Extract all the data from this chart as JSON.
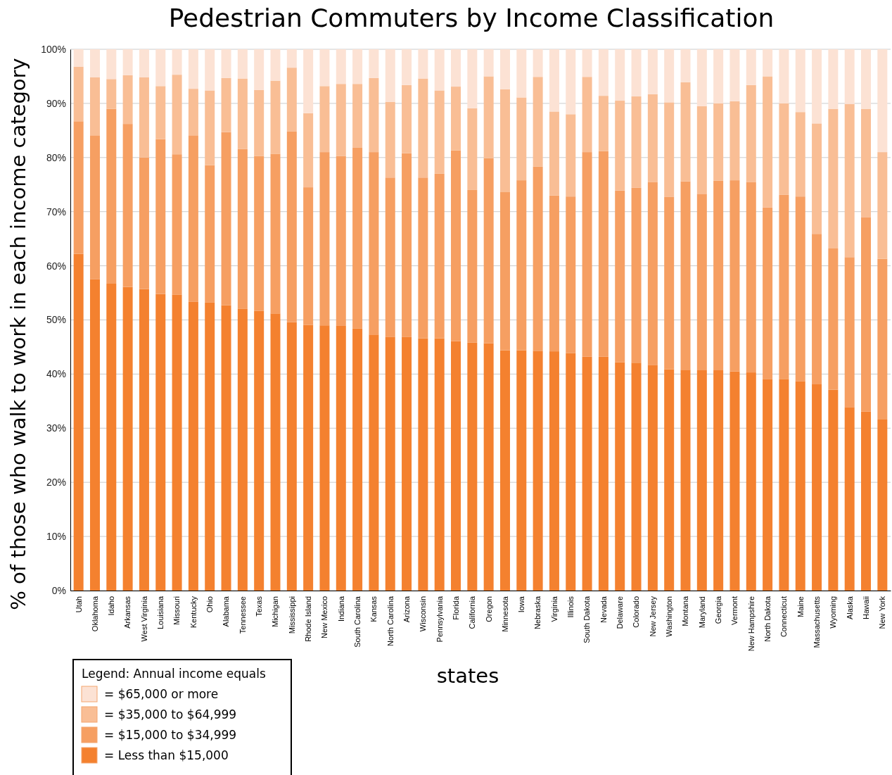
{
  "chart_data": {
    "type": "bar",
    "stacked": true,
    "title": "Pedestrian Commuters by Income Classification",
    "xlabel": "states",
    "ylabel": "% of those who walk to work in each income category",
    "legend_title": "Legend: Annual income equals",
    "legend": "bottom left",
    "grid": "y",
    "categories": [
      "Utah",
      "Oklahoma",
      "Idaho",
      "Arkansas",
      "West Virginia",
      "Louisiana",
      "Missouri",
      "Kentucky",
      "Ohio",
      "Alabama",
      "Tennessee",
      "Texas",
      "Michigan",
      "Mississippi",
      "Rhode Island",
      "New Mexico",
      "Indiana",
      "South Carolina",
      "Kansas",
      "North Carolina",
      "Arizona",
      "Wisconsin",
      "Pennsylvania",
      "Florida",
      "California",
      "Oregon",
      "Minnesota",
      "Iowa",
      "Nebraska",
      "Virginia",
      "Illinois",
      "South Dakota",
      "Nevada",
      "Delaware",
      "Colorado",
      "New Jersey",
      "Washington",
      "Montana",
      "Maryland",
      "Georgia",
      "Vermont",
      "New Hampshire",
      "North Dakota",
      "Connecticut",
      "Maine",
      "Massachusetts",
      "Wyoming",
      "Alaska",
      "Hawaii",
      "New York"
    ],
    "ylim": [
      0,
      100
    ],
    "yticks": [
      {
        "value": 0,
        "label": "0%"
      },
      {
        "value": 10,
        "label": "10%"
      },
      {
        "value": 20,
        "label": "20%"
      },
      {
        "value": 30,
        "label": "30%"
      },
      {
        "value": 40,
        "label": "40%"
      },
      {
        "value": 50,
        "label": "50%"
      },
      {
        "value": 60,
        "label": "60%"
      },
      {
        "value": 70,
        "label": "70%"
      },
      {
        "value": 80,
        "label": "80%"
      },
      {
        "value": 90,
        "label": "90%"
      },
      {
        "value": 100,
        "label": "100%"
      }
    ],
    "series": [
      {
        "name": "= Less than $15,000",
        "color": "#f4812f",
        "values": [
          62.2,
          57.5,
          56.7,
          56.1,
          55.7,
          54.8,
          54.7,
          53.4,
          53.2,
          52.7,
          52.1,
          51.7,
          51.2,
          49.6,
          49.1,
          49.0,
          48.9,
          48.4,
          47.3,
          46.9,
          46.9,
          46.6,
          46.6,
          46.1,
          45.8,
          45.7,
          44.4,
          44.4,
          44.3,
          44.2,
          43.9,
          43.2,
          43.2,
          42.2,
          42.1,
          41.7,
          40.9,
          40.8,
          40.7,
          40.7,
          40.5,
          40.3,
          39.1,
          39.1,
          38.7,
          38.1,
          37.1,
          33.9,
          33.1,
          31.6
        ]
      },
      {
        "name": "= $15,000 to $34,999",
        "color": "#f69f62",
        "values": [
          24.5,
          26.6,
          32.3,
          30.1,
          24.3,
          28.6,
          25.9,
          30.7,
          25.4,
          32.0,
          29.5,
          28.6,
          29.5,
          35.2,
          25.4,
          32.0,
          31.4,
          33.4,
          33.7,
          29.4,
          33.9,
          29.7,
          30.4,
          35.2,
          28.2,
          34.2,
          29.2,
          31.4,
          34.0,
          28.8,
          28.9,
          37.8,
          38.0,
          31.7,
          32.3,
          33.8,
          31.8,
          34.8,
          32.6,
          35.0,
          35.3,
          35.2,
          31.7,
          34.0,
          34.1,
          27.8,
          26.1,
          27.7,
          35.9,
          29.7
        ]
      },
      {
        "name": "= $35,000 to $64,999",
        "color": "#f9be95",
        "values": [
          10.1,
          10.7,
          5.5,
          9.0,
          14.8,
          9.8,
          14.7,
          8.6,
          13.8,
          10.0,
          13.0,
          12.2,
          13.5,
          11.8,
          13.7,
          12.2,
          13.3,
          11.8,
          13.7,
          14.0,
          12.6,
          18.3,
          15.4,
          11.8,
          15.1,
          15.1,
          19.0,
          15.3,
          16.6,
          15.5,
          15.2,
          13.9,
          10.2,
          16.6,
          16.9,
          16.2,
          17.5,
          18.3,
          16.2,
          14.3,
          14.6,
          17.9,
          24.2,
          16.9,
          15.6,
          20.4,
          25.8,
          28.3,
          20.0,
          19.7
        ]
      },
      {
        "name": "= $65,000 or more",
        "color": "#fce2d4",
        "values": [
          3.2,
          5.2,
          5.5,
          4.8,
          5.2,
          6.8,
          4.7,
          7.3,
          7.6,
          5.3,
          5.4,
          7.5,
          5.8,
          3.4,
          11.8,
          6.8,
          6.4,
          6.4,
          5.3,
          9.7,
          6.6,
          5.4,
          7.6,
          6.9,
          10.9,
          5.0,
          7.4,
          8.9,
          5.1,
          11.5,
          12.0,
          5.1,
          8.6,
          9.5,
          8.7,
          8.3,
          9.8,
          6.1,
          10.5,
          10.0,
          9.6,
          6.6,
          5.0,
          10.0,
          11.6,
          13.7,
          11.0,
          10.1,
          11.0,
          19.0
        ]
      }
    ]
  }
}
